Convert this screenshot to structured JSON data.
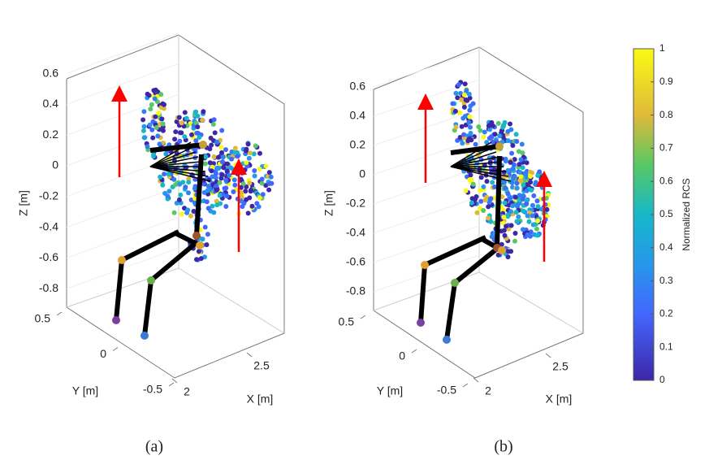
{
  "panels": [
    {
      "caption": "(a)",
      "zlabel": "Z [m]",
      "ylabel": "Y [m]",
      "xlabel": "X [m]",
      "zticks": [
        0.6,
        0.4,
        0.2,
        0,
        -0.2,
        -0.4,
        -0.6,
        -0.8
      ],
      "yticks": [
        0.5,
        0,
        -0.5
      ],
      "xticks": [
        2,
        2.5
      ]
    },
    {
      "caption": "(b)",
      "zlabel": "Z [m]",
      "ylabel": "Y [m]",
      "xlabel": "X [m]",
      "zticks": [
        0.6,
        0.4,
        0.2,
        0,
        -0.2,
        -0.4,
        -0.6,
        -0.8
      ],
      "yticks": [
        0.5,
        0,
        -0.5
      ],
      "xticks": [
        2,
        2.5
      ]
    }
  ],
  "colorbar": {
    "label": "Normalized RCS",
    "lim": [
      0,
      1
    ],
    "ticks": [
      0,
      0.1,
      0.2,
      0.3,
      0.4,
      0.5,
      0.6,
      0.7,
      0.8,
      0.9,
      1
    ]
  }
}
